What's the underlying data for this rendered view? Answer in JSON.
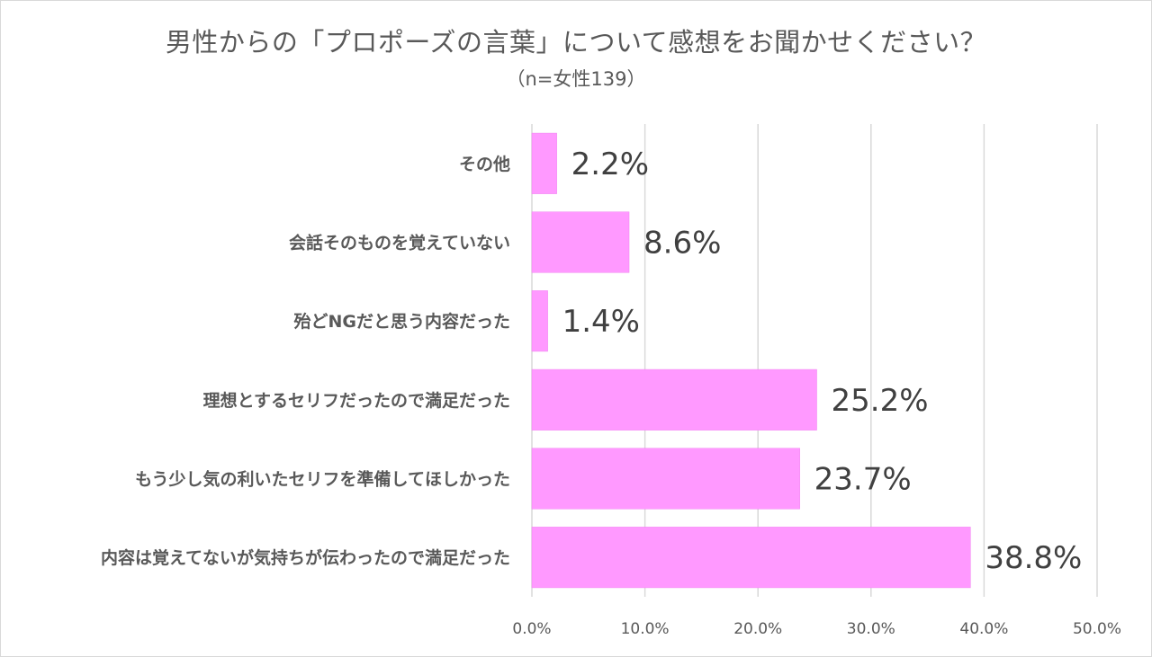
{
  "chart_data": {
    "type": "bar",
    "orientation": "horizontal",
    "title": "男性からの「プロポーズの言葉」について感想をお聞かせください？",
    "subtitle": "（n=女性139）",
    "categories": [
      "その他",
      "会話そのものを覚えていない",
      "殆どNGだと思う内容だった",
      "理想とするセリフだったので満足だった",
      "もう少し気の利いたセリフを準備してほしかった",
      "内容は覚えてないが気持ちが伝わったので満足だった"
    ],
    "values": [
      2.2,
      8.6,
      1.4,
      25.2,
      23.7,
      38.8
    ],
    "value_labels": [
      "2.2%",
      "8.6%",
      "1.4%",
      "25.2%",
      "23.7%",
      "38.8%"
    ],
    "xlim": [
      0,
      50
    ],
    "x_ticks": [
      0,
      10,
      20,
      30,
      40,
      50
    ],
    "x_tick_labels": [
      "0.0%",
      "10.0%",
      "20.0%",
      "30.0%",
      "40.0%",
      "50.0%"
    ],
    "grid": true,
    "legend": "none",
    "bar_color": "#FF99FF"
  }
}
